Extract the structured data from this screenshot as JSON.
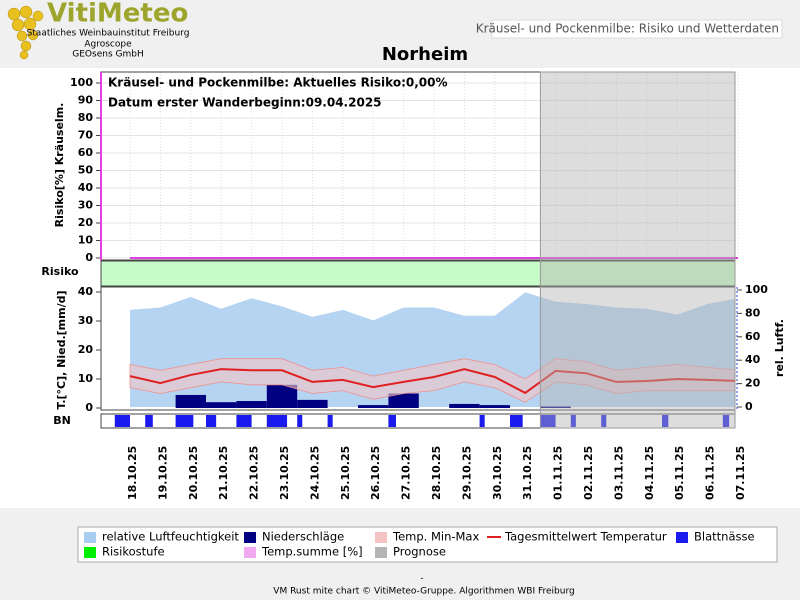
{
  "header": {
    "logo": "VitiMeteo",
    "institutes": [
      "Staatliches Weinbauinstitut Freiburg",
      "Agroscope",
      "GEOsens GmbH"
    ],
    "page_title": "Kräusel- und Pockenmilbe: Risiko und Wetterdaten"
  },
  "chart_data": [
    {
      "type": "line",
      "title": "Norheim",
      "annotations": [
        "Kräusel- und Pockenmilbe: Aktuelles Risiko:0,00%",
        "Datum erster Wanderbeginn:09.04.2025"
      ],
      "y_label": "Risiko[%] Kräuselm.",
      "ylim": [
        0,
        100
      ],
      "yticks": [
        0,
        10,
        20,
        30,
        40,
        50,
        60,
        70,
        80,
        90,
        100
      ],
      "grid": true,
      "series": [
        {
          "name": "Temp.summe [%]",
          "color": "#e040e0",
          "values": [
            0,
            0,
            0,
            0,
            0,
            0,
            0,
            0,
            0,
            0,
            0,
            0,
            0,
            0,
            0,
            0,
            0,
            0,
            0,
            0,
            0
          ]
        }
      ],
      "risk_strip": {
        "label": "Risiko",
        "name": "Risikostufe",
        "color": "#00ee00"
      }
    },
    {
      "type": "combo",
      "categories": [
        "18.10.25",
        "19.10.25",
        "20.10.25",
        "21.10.25",
        "22.10.25",
        "23.10.25",
        "24.10.25",
        "25.10.25",
        "26.10.25",
        "27.10.25",
        "28.10.25",
        "29.10.25",
        "30.10.25",
        "31.10.25",
        "01.11.25",
        "02.11.25",
        "03.11.25",
        "04.11.25",
        "05.11.25",
        "06.11.25",
        "07.11.25"
      ],
      "y_label": "T.[°C], Nied.[mm/d]",
      "y2_label": "rel. Luftf.",
      "ylim": [
        0,
        40
      ],
      "yticks": [
        0,
        10,
        20,
        30,
        40
      ],
      "y2lim": [
        0,
        100
      ],
      "y2ticks": [
        0,
        20,
        40,
        60,
        80,
        100
      ],
      "series": [
        {
          "name": "relative Luftfeuchtigkeit",
          "kind": "area",
          "axis": "y2",
          "color": "#a8cdf0",
          "values": [
            83,
            85,
            94,
            84,
            93,
            86,
            77,
            83,
            74,
            85,
            85,
            78,
            78,
            98,
            90,
            88,
            85,
            84,
            79,
            88,
            93
          ]
        },
        {
          "name": "Niederschläge",
          "kind": "bar",
          "color": "#000080",
          "values": [
            0,
            0,
            4.5,
            2,
            2.4,
            8,
            2.8,
            0,
            1,
            5,
            0,
            1.4,
            1,
            0,
            0.5,
            0,
            0,
            0,
            0,
            0,
            0
          ]
        },
        {
          "name": "Temp. Min-Max",
          "kind": "range",
          "color": "#f4c4c4",
          "max": [
            15,
            13,
            15,
            17,
            17,
            17,
            13,
            14,
            11,
            13,
            15,
            17,
            15,
            10,
            17,
            16,
            13,
            14,
            15,
            14,
            13
          ],
          "min": [
            7,
            5,
            7,
            9,
            8,
            8,
            5,
            6,
            3,
            5,
            6,
            9,
            7,
            2,
            9,
            8,
            5,
            6,
            6,
            6,
            6
          ]
        },
        {
          "name": "Tagesmittelwert Temperatur",
          "kind": "line",
          "color": "#e02020",
          "values": [
            11,
            8.6,
            11.4,
            13.4,
            13,
            13,
            9,
            9.7,
            7.2,
            9,
            10.7,
            13.4,
            10.7,
            5.2,
            12.8,
            12,
            9,
            9.3,
            10,
            9.7,
            9.3
          ]
        }
      ],
      "forecast": {
        "name": "Prognose",
        "color": "#b4b4b4",
        "start": "01.11.25"
      }
    },
    {
      "type": "timeline",
      "label": "BN",
      "ylim": [
        0,
        24
      ],
      "series": [
        {
          "name": "Blattnässe",
          "color": "#1a1aee",
          "values": [
            12,
            6,
            14,
            8,
            12,
            16,
            4,
            4,
            0,
            6,
            0,
            0,
            4,
            10,
            12,
            4,
            4,
            0,
            5,
            0,
            5
          ]
        }
      ]
    }
  ],
  "footer": {
    "dash": "-",
    "credit": "VM Rust mite chart © VitiMeteo-Gruppe. Algorithmen WBI Freiburg"
  }
}
